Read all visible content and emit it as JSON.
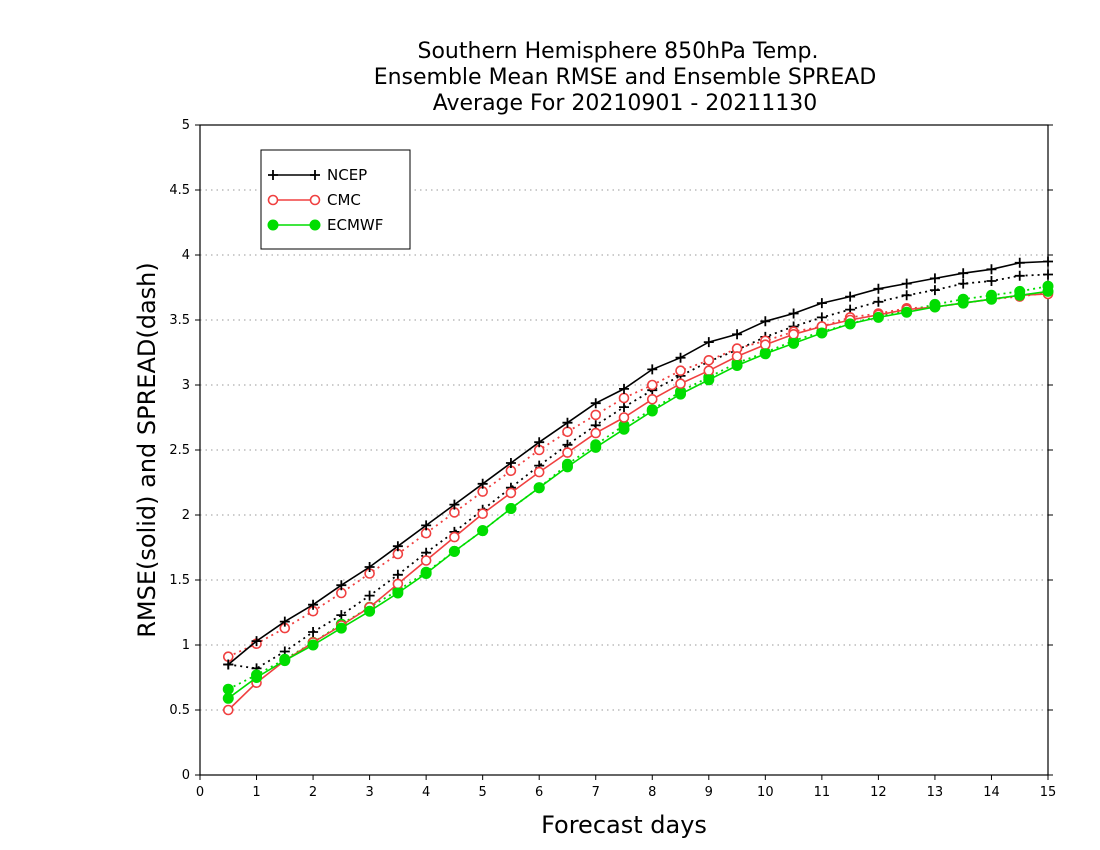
{
  "chart_data": {
    "type": "line",
    "title": [
      "Southern Hemisphere 850hPa Temp.",
      "Ensemble Mean RMSE and Ensemble SPREAD",
      "Average For 20210901 - 20211130"
    ],
    "xlabel": "Forecast days",
    "ylabel": "RMSE(solid) and SPREAD(dash)",
    "xlim": [
      0,
      15
    ],
    "ylim": [
      0,
      5
    ],
    "x_ticks": [
      "0",
      "1",
      "2",
      "3",
      "4",
      "5",
      "6",
      "7",
      "8",
      "9",
      "10",
      "11",
      "12",
      "13",
      "14",
      "15"
    ],
    "y_ticks": [
      "0",
      "0.5",
      "1",
      "1.5",
      "2",
      "2.5",
      "3",
      "3.5",
      "4",
      "4.5",
      "5"
    ],
    "grid": "horizontal dotted",
    "legend_position": "top-left",
    "x": [
      0.5,
      1,
      1.5,
      2,
      2.5,
      3,
      3.5,
      4,
      4.5,
      5,
      5.5,
      6,
      6.5,
      7,
      7.5,
      8,
      8.5,
      9,
      9.5,
      10,
      10.5,
      11,
      11.5,
      12,
      12.5,
      13,
      13.5,
      14,
      14.5,
      15
    ],
    "series": [
      {
        "name": "NCEP",
        "color": "#000000",
        "marker": "plus",
        "rmse": [
          0.85,
          1.03,
          1.18,
          1.31,
          1.46,
          1.6,
          1.76,
          1.92,
          2.08,
          2.24,
          2.4,
          2.56,
          2.71,
          2.86,
          2.97,
          3.12,
          3.21,
          3.33,
          3.39,
          3.49,
          3.55,
          3.63,
          3.68,
          3.74,
          3.78,
          3.82,
          3.86,
          3.89,
          3.94,
          3.95
        ],
        "spread": [
          0.85,
          0.82,
          0.95,
          1.1,
          1.23,
          1.38,
          1.54,
          1.71,
          1.87,
          2.04,
          2.21,
          2.38,
          2.54,
          2.69,
          2.83,
          2.96,
          3.07,
          3.18,
          3.27,
          3.37,
          3.45,
          3.52,
          3.58,
          3.64,
          3.69,
          3.73,
          3.78,
          3.8,
          3.84,
          3.85
        ]
      },
      {
        "name": "CMC",
        "color": "#f04040",
        "marker": "open-circle",
        "rmse": [
          0.5,
          0.71,
          0.88,
          1.02,
          1.15,
          1.29,
          1.47,
          1.65,
          1.83,
          2.01,
          2.17,
          2.33,
          2.48,
          2.63,
          2.75,
          2.89,
          3.01,
          3.11,
          3.22,
          3.31,
          3.39,
          3.45,
          3.5,
          3.54,
          3.58,
          3.6,
          3.63,
          3.66,
          3.69,
          3.7
        ],
        "spread": [
          0.91,
          1.01,
          1.13,
          1.26,
          1.4,
          1.55,
          1.7,
          1.86,
          2.02,
          2.18,
          2.34,
          2.5,
          2.64,
          2.77,
          2.9,
          3.0,
          3.11,
          3.19,
          3.28,
          3.34,
          3.41,
          3.45,
          3.52,
          3.55,
          3.59,
          3.6,
          3.63,
          3.66,
          3.68,
          3.71
        ]
      },
      {
        "name": "ECMWF",
        "color": "#00dd00",
        "marker": "filled-circle",
        "rmse": [
          0.59,
          0.75,
          0.88,
          1.0,
          1.13,
          1.26,
          1.4,
          1.55,
          1.72,
          1.88,
          2.05,
          2.21,
          2.37,
          2.52,
          2.66,
          2.8,
          2.93,
          3.04,
          3.15,
          3.24,
          3.32,
          3.4,
          3.47,
          3.52,
          3.56,
          3.6,
          3.63,
          3.66,
          3.69,
          3.72
        ],
        "spread": [
          0.66,
          0.77,
          0.89,
          1.02,
          1.16,
          1.29,
          1.42,
          1.56,
          1.72,
          1.88,
          2.05,
          2.21,
          2.39,
          2.54,
          2.69,
          2.81,
          2.95,
          3.06,
          3.17,
          3.25,
          3.34,
          3.41,
          3.47,
          3.53,
          3.57,
          3.62,
          3.66,
          3.69,
          3.72,
          3.76
        ]
      }
    ]
  }
}
